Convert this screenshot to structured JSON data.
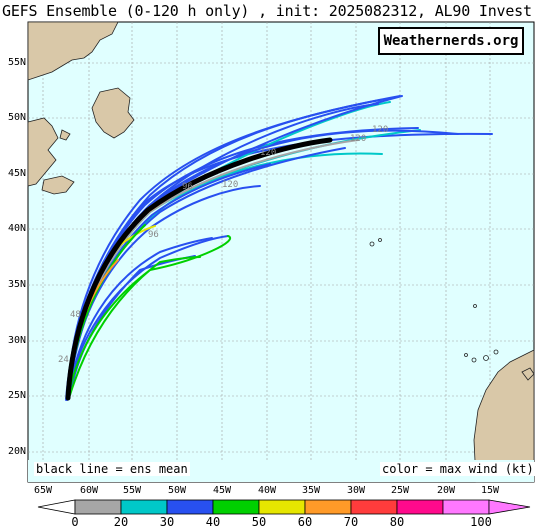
{
  "title": "GEFS Ensemble (0-120 h only) , init: 2025082312, AL90 Invest",
  "brand": "Weathernerds.org",
  "legend_left": "black line = ens mean",
  "legend_right": "color = max wind (kt)",
  "lat_labels": [
    "55N",
    "50N",
    "45N",
    "40N",
    "35N",
    "30N",
    "25N",
    "20N"
  ],
  "lon_labels": [
    "65W",
    "60W",
    "55W",
    "50W",
    "45W",
    "40W",
    "35W",
    "30W",
    "25W",
    "20W",
    "15W"
  ],
  "colorbar": {
    "ticks": [
      "0",
      "20",
      "30",
      "40",
      "50",
      "60",
      "70",
      "80",
      "100"
    ],
    "colors": [
      "#a6a6a6",
      "#00c8c8",
      "#2850f0",
      "#00d000",
      "#e6e600",
      "#ff9a28",
      "#ff3c3c",
      "#ff0a8c",
      "#ff78ff"
    ]
  },
  "hour_labels": [
    "120",
    "120",
    "120",
    "120",
    "96",
    "96",
    "48",
    "24"
  ],
  "colors": {
    "ocean": "#e0ffff",
    "land": "#d9c8a8",
    "mean_track": "#000000"
  }
}
